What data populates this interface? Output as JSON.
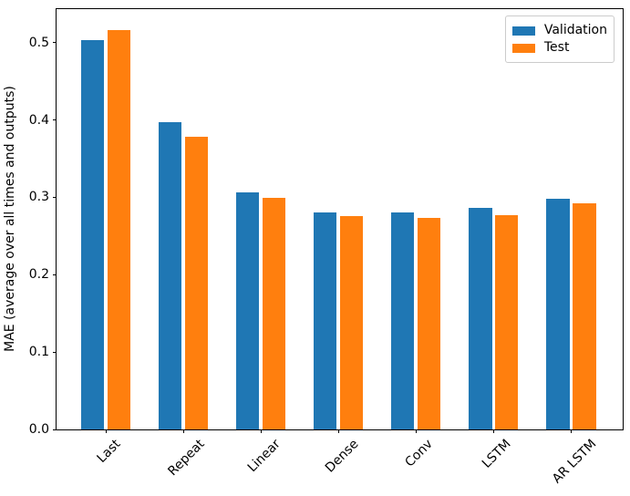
{
  "chart_data": {
    "type": "bar",
    "title": "",
    "categories": [
      "Last",
      "Repeat",
      "Linear",
      "Dense",
      "Conv",
      "LSTM",
      "AR LSTM"
    ],
    "series": [
      {
        "name": "Validation",
        "color": "#1f77b4",
        "values": [
          0.503,
          0.397,
          0.306,
          0.281,
          0.28,
          0.286,
          0.298
        ]
      },
      {
        "name": "Test",
        "color": "#ff7f0e",
        "values": [
          0.516,
          0.378,
          0.299,
          0.276,
          0.274,
          0.277,
          0.292
        ]
      }
    ],
    "xlabel": "",
    "ylabel": "MAE (average over all times and outputs)",
    "yticks": [
      0.0,
      0.1,
      0.2,
      0.3,
      0.4,
      0.5
    ],
    "ytick_labels": [
      "0.0",
      "0.1",
      "0.2",
      "0.3",
      "0.4",
      "0.5"
    ],
    "ylim": [
      0,
      0.5433
    ],
    "xtick_rotation": 45,
    "grid": false,
    "bar_width": 0.3,
    "group_offsets": [
      -0.17,
      0.17
    ],
    "legend": {
      "position": "upper-right",
      "entries": [
        "Validation",
        "Test"
      ]
    }
  }
}
